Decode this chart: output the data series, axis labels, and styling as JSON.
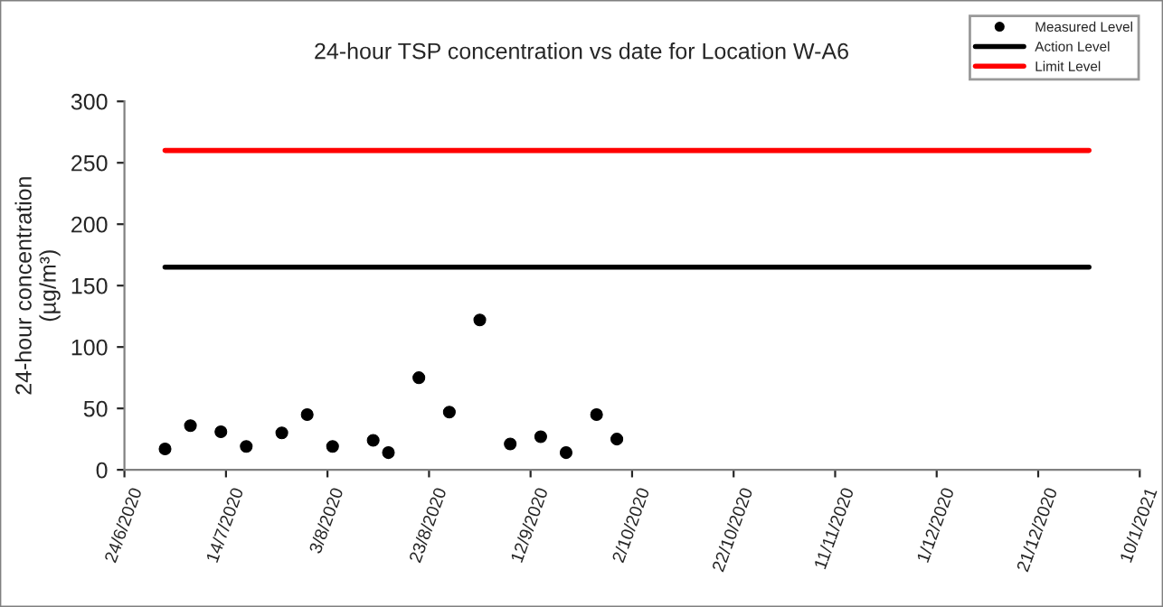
{
  "chart_data": {
    "type": "scatter",
    "title": "24-hour TSP concentration vs date for Location W-A6",
    "ylabel": "24-hour concentration\n(µg/m³)",
    "series": [
      {
        "name": "Measured Level",
        "color": "#000000",
        "marker": "circle",
        "x": [
          "2020-07-02",
          "2020-07-07",
          "2020-07-13",
          "2020-07-18",
          "2020-07-25",
          "2020-07-30",
          "2020-08-04",
          "2020-08-12",
          "2020-08-15",
          "2020-08-21",
          "2020-08-27",
          "2020-09-02",
          "2020-09-08",
          "2020-09-14",
          "2020-09-19",
          "2020-09-25",
          "2020-09-29"
        ],
        "values": [
          17,
          36,
          31,
          19,
          30,
          45,
          19,
          24,
          14,
          75,
          47,
          122,
          21,
          27,
          14,
          45,
          25
        ]
      },
      {
        "name": "Action Level",
        "type": "line",
        "color": "#000000",
        "line_style": "solid",
        "x": [
          "2020-07-02",
          "2020-12-31"
        ],
        "values": [
          165,
          165
        ]
      },
      {
        "name": "Limit Level",
        "type": "line",
        "color": "#ff0000",
        "line_style": "solid",
        "x": [
          "2020-07-02",
          "2020-12-31"
        ],
        "values": [
          260,
          260
        ]
      }
    ],
    "xlim": [
      "2020-06-24",
      "2021-01-10"
    ],
    "xticks": [
      {
        "value": "2020-06-24",
        "label": "24/6/2020"
      },
      {
        "value": "2020-07-14",
        "label": "14/7/2020"
      },
      {
        "value": "2020-08-03",
        "label": "3/8/2020"
      },
      {
        "value": "2020-08-23",
        "label": "23/8/2020"
      },
      {
        "value": "2020-09-12",
        "label": "12/9/2020"
      },
      {
        "value": "2020-10-02",
        "label": "2/10/2020"
      },
      {
        "value": "2020-10-22",
        "label": "22/10/2020"
      },
      {
        "value": "2020-11-11",
        "label": "11/11/2020"
      },
      {
        "value": "2020-12-01",
        "label": "1/12/2020"
      },
      {
        "value": "2020-12-21",
        "label": "21/12/2020"
      },
      {
        "value": "2021-01-10",
        "label": "10/1/2021"
      }
    ],
    "ylim": [
      0,
      300
    ],
    "yticks": [
      0,
      50,
      100,
      150,
      200,
      250,
      300
    ],
    "grid": false,
    "legend": "top right"
  }
}
